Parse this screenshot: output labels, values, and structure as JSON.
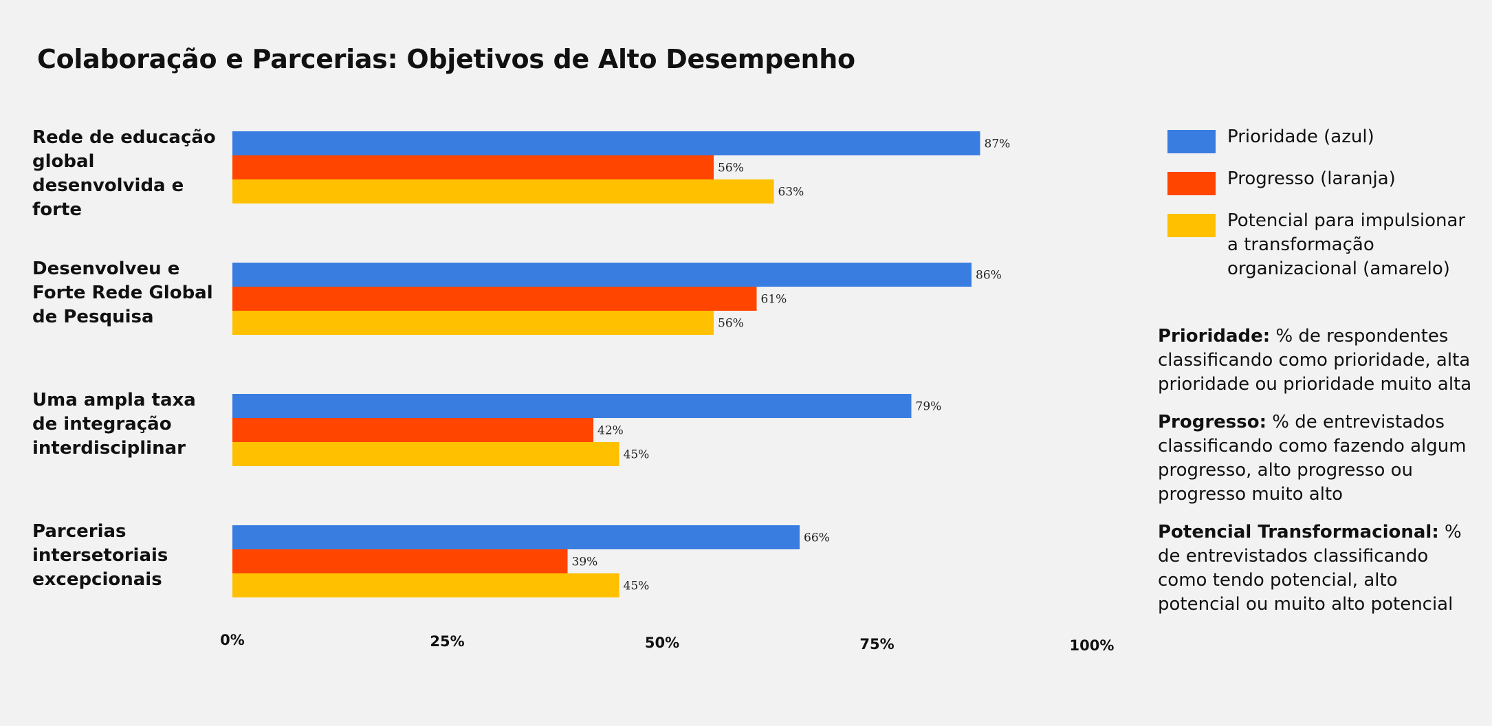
{
  "chart_data": {
    "type": "bar",
    "orientation": "horizontal",
    "title": "Colaboração e Parcerias: Objetivos de Alto Desempenho",
    "categories": [
      "Rede de educação global desenvolvida e forte",
      "Desenvolveu e Forte Rede Global de Pesquisa",
      "Uma ampla taxa de integração interdisciplinar",
      "Parcerias intersetoriais excepcionais"
    ],
    "series": [
      {
        "name": "Prioridade (azul)",
        "color": "#3a7de0",
        "values": [
          87,
          86,
          79,
          66
        ]
      },
      {
        "name": "Progresso (laranja)",
        "color": "#ff4500",
        "values": [
          56,
          61,
          42,
          39
        ]
      },
      {
        "name": "Potencial para impulsionar a transformação organizacional (amarelo)",
        "color": "#ffc000",
        "values": [
          63,
          56,
          45,
          45
        ]
      }
    ],
    "value_suffix": "%",
    "xlim": [
      0,
      100
    ],
    "x_ticks": [
      "0%",
      "25%",
      "50%",
      "75%",
      "100%"
    ],
    "xlabel": "",
    "ylabel": "",
    "grid": false,
    "legend_position": "right"
  },
  "notes": [
    {
      "label": "Prioridade:",
      "text": " % de respondentes classificando como prioridade, alta prioridade ou prioridade muito alta"
    },
    {
      "label": "Progresso:",
      "text": " % de entrevistados classificando como fazendo algum progresso, alto progresso ou progresso muito alto"
    },
    {
      "label": "Potencial Transformacional:",
      "text": " % de entrevistados classificando como tendo potencial, alto potencial ou muito alto potencial"
    }
  ]
}
